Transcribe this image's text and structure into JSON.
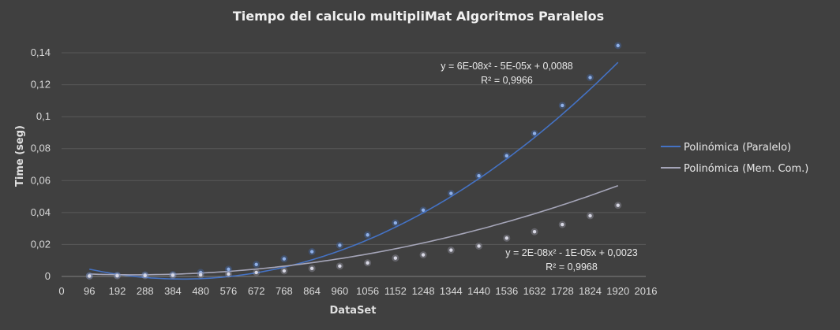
{
  "chart_data": {
    "type": "scatter",
    "title": "Tiempo del calculo multipliMat Algoritmos Paralelos",
    "xlabel": "DataSet",
    "ylabel": "Time (seg)",
    "xlim": [
      0,
      2016
    ],
    "ylim": [
      0,
      0.14
    ],
    "x_ticks": [
      "0",
      "96",
      "192",
      "288",
      "384",
      "480",
      "576",
      "672",
      "768",
      "864",
      "960",
      "1056",
      "1152",
      "1248",
      "1344",
      "1440",
      "1536",
      "1632",
      "1728",
      "1824",
      "1920",
      "2016"
    ],
    "y_ticks": [
      "0",
      "0,02",
      "0,04",
      "0,06",
      "0,08",
      "0,1",
      "0,12",
      "0,14"
    ],
    "grid": "horizontal",
    "legend_position": "right",
    "x": [
      96,
      192,
      288,
      384,
      480,
      576,
      672,
      768,
      864,
      960,
      1056,
      1152,
      1248,
      1344,
      1440,
      1536,
      1632,
      1728,
      1824,
      1920
    ],
    "series": [
      {
        "name": "Polinómica (Paralelo)",
        "color": "#4472c4",
        "values": [
          0.0005,
          0.0008,
          0.001,
          0.0012,
          0.0025,
          0.0045,
          0.0075,
          0.011,
          0.0155,
          0.0195,
          0.026,
          0.0335,
          0.0415,
          0.052,
          0.063,
          0.0755,
          0.0895,
          0.107,
          0.1245,
          0.1445
        ],
        "trend": {
          "a": 6e-08,
          "b": -5e-05,
          "c": 0.0088
        },
        "equation": "y = 6E-08x² - 5E-05x + 0,0088",
        "r2": "R² = 0,9966"
      },
      {
        "name": "Polinómica (Mem. Com.)",
        "color": "#a5a5b8",
        "values": [
          0.0002,
          0.0004,
          0.0005,
          0.0007,
          0.001,
          0.0015,
          0.0025,
          0.0035,
          0.005,
          0.0065,
          0.0085,
          0.0115,
          0.0135,
          0.0165,
          0.019,
          0.024,
          0.028,
          0.0325,
          0.038,
          0.0445
        ],
        "trend": {
          "a": 2e-08,
          "b": -1e-05,
          "c": 0.0023
        },
        "equation": "y = 2E-08x² - 1E-05x + 0,0023",
        "r2": "R² = 0,9968"
      }
    ]
  }
}
